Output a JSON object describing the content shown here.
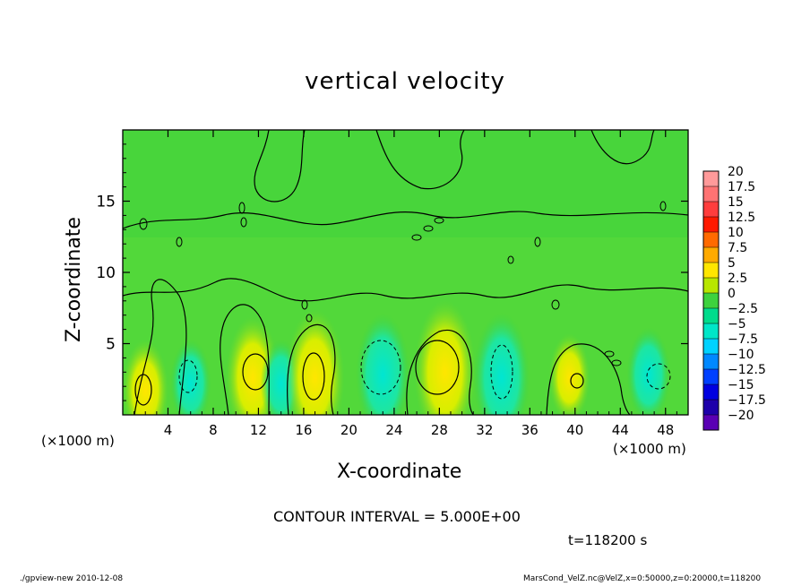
{
  "chart_data": {
    "type": "heatmap",
    "title": "vertical velocity",
    "xlabel": "X-coordinate",
    "ylabel": "Z-coordinate",
    "x_unit": "(×1000 m)",
    "xlim": [
      0,
      50
    ],
    "ylim": [
      0,
      20
    ],
    "x_ticks": [
      "4",
      "8",
      "12",
      "16",
      "20",
      "24",
      "28",
      "32",
      "36",
      "40",
      "44",
      "48"
    ],
    "y_ticks": [
      "5",
      "10",
      "15"
    ],
    "colorbar": {
      "levels": [
        "20",
        "17.5",
        "15",
        "12.5",
        "10",
        "7.5",
        "5",
        "2.5",
        "0",
        "−2.5",
        "−5",
        "−7.5",
        "−10",
        "−12.5",
        "−15",
        "−17.5",
        "−20"
      ],
      "colors": [
        "#ff9a9a",
        "#ff7373",
        "#ff3d3d",
        "#ff1a00",
        "#ff6a00",
        "#ffaa00",
        "#ffe600",
        "#b8e600",
        "#3ed23e",
        "#00dc8c",
        "#00e6c8",
        "#00d2ff",
        "#0088ff",
        "#0040ff",
        "#0000e0",
        "#1e00aa",
        "#5a00b4"
      ]
    },
    "features": [
      {
        "x": 2.0,
        "z": 1.7,
        "w": 4.0
      },
      {
        "x": 6.0,
        "z": 2.2,
        "w": -3.0
      },
      {
        "x": 11.5,
        "z": 2.6,
        "w": 5.5
      },
      {
        "x": 14.0,
        "z": 2.2,
        "w": -3.0
      },
      {
        "x": 17.0,
        "z": 2.6,
        "w": 6.5
      },
      {
        "x": 23.0,
        "z": 2.8,
        "w": -5.5
      },
      {
        "x": 28.5,
        "z": 3.0,
        "w": 7.0
      },
      {
        "x": 33.5,
        "z": 2.6,
        "w": -6.0
      },
      {
        "x": 39.5,
        "z": 2.6,
        "w": 3.0
      },
      {
        "x": 46.5,
        "z": 2.8,
        "w": -3.5
      }
    ],
    "contour_interval": "CONTOUR INTERVAL = 5.000E+00",
    "time": "t=118200 s"
  },
  "footer": {
    "left": "./gpview-new  2010-12-08",
    "right": "MarsCond_VelZ.nc@VelZ,x=0:50000,z=0:20000,t=118200"
  }
}
